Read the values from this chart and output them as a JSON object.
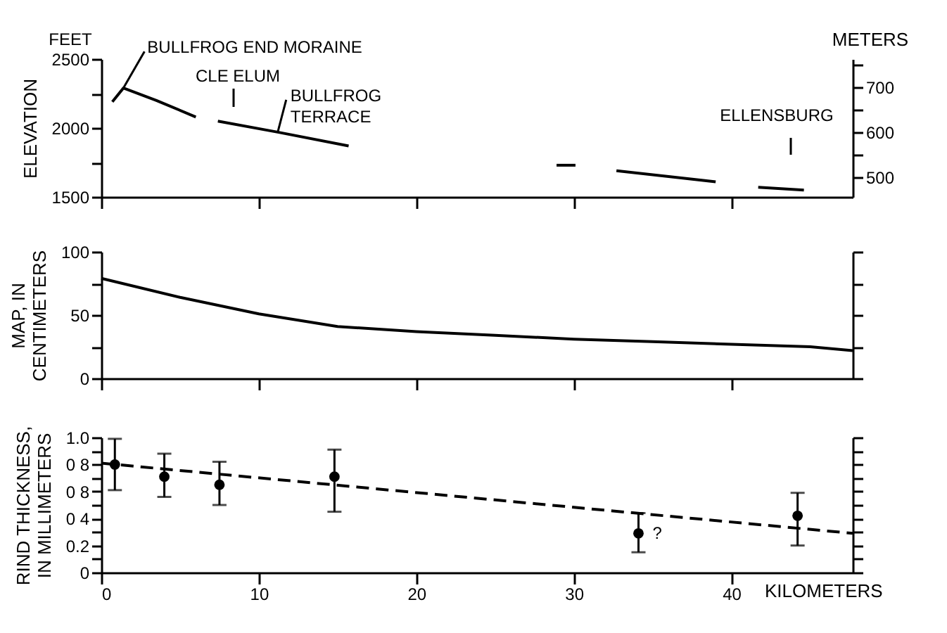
{
  "chart_data": [
    {
      "type": "line",
      "ylabel": "ELEVATION",
      "y2label": "METERS",
      "xlim": [
        0,
        47.7
      ],
      "xticks": [
        0,
        10,
        20,
        30,
        40
      ],
      "ylim": [
        1500,
        2500
      ],
      "yticks": [
        1500,
        {
          "value": 1750,
          "label": null
        },
        2000,
        {
          "value": 2250,
          "label": null
        },
        2500
      ],
      "y2lim": [
        457.2,
        762
      ],
      "y2ticks": [
        500,
        {
          "value": 550,
          "label": null
        },
        600,
        {
          "value": 650,
          "label": null
        },
        700,
        {
          "value": 750,
          "label": null
        }
      ],
      "tick_labels": "y",
      "grid": false,
      "series": [
        {
          "color": "#000000",
          "x": [
            0.7,
            1.4,
            3.5,
            6.0
          ],
          "values": [
            2190,
            2290,
            2200,
            2080
          ]
        },
        {
          "color": "#000000",
          "x": [
            7.4,
            11.2,
            15.7
          ],
          "values": [
            2050,
            1970,
            1870
          ]
        },
        {
          "color": "#000000",
          "x": [
            28.9,
            30.1
          ],
          "values": [
            1730,
            1730
          ]
        },
        {
          "color": "#000000",
          "x": [
            32.7,
            39.0
          ],
          "values": [
            1690,
            1610
          ]
        },
        {
          "color": "#000000",
          "x": [
            41.7,
            44.6
          ],
          "values": [
            1570,
            1550
          ]
        }
      ],
      "annotations": [
        "FEET",
        {
          "text": "BULLFROG END MORAINE",
          "x": 1.4,
          "y": 2290
        },
        "CLE ELUM",
        {
          "text": "BULLFROG\nTERRACE",
          "x": 11.2,
          "y": 1970
        },
        "ELLENSBURG"
      ]
    },
    {
      "type": "line",
      "ylabel": "MAP, IN\nCENTIMETERS",
      "xlim": [
        0,
        47.7
      ],
      "xticks": [
        0,
        10,
        20,
        30,
        40
      ],
      "ylim": [
        0,
        100
      ],
      "yticks": [
        0,
        {
          "value": 25,
          "label": null
        },
        50,
        {
          "value": 75,
          "label": null
        },
        100
      ],
      "tick_labels": "y",
      "grid": false,
      "series": [
        {
          "color": "#000000",
          "x": [
            0,
            5,
            10,
            15,
            20,
            25,
            30,
            35,
            40,
            45,
            47.7
          ],
          "values": [
            79,
            64,
            51,
            41,
            37,
            34,
            31,
            29,
            27,
            25,
            22
          ]
        }
      ]
    },
    {
      "type": "scatter",
      "ylabel": "RIND THICKNESS,\nIN MILLIMETERS",
      "xlabel": "KILOMETERS",
      "xlim": [
        0,
        47.7
      ],
      "xticks": [
        0,
        10,
        20,
        30,
        40
      ],
      "ylim": [
        0,
        1.0
      ],
      "yticks": [
        0,
        {
          "value": 0.1,
          "label": null
        },
        0.2,
        {
          "value": 0.3,
          "label": null
        },
        {
          "value": 0.4,
          "label": "0 4"
        },
        {
          "value": 0.5,
          "label": null
        },
        {
          "value": 0.6,
          "label": "0 8"
        },
        {
          "value": 0.7,
          "label": null
        },
        {
          "value": 0.8,
          "label": "0 8"
        },
        {
          "value": 0.9,
          "label": null
        },
        {
          "value": 1.0,
          "label": "1.0"
        }
      ],
      "grid": false,
      "series": [
        {
          "marker": "circle",
          "color": "#000000",
          "x": [
            0.86,
            4.0,
            7.5,
            14.8,
            34.1,
            44.2
          ],
          "values": [
            0.8,
            0.71,
            0.65,
            0.71,
            0.29,
            0.42
          ],
          "errors": [
            [
              0.61,
              0.99
            ],
            [
              0.56,
              0.88
            ],
            [
              0.5,
              0.82
            ],
            [
              0.45,
              0.91
            ],
            [
              0.15,
              0.44
            ],
            [
              0.2,
              0.59
            ]
          ]
        },
        {
          "type": "line",
          "line_style": "dashed",
          "color": "#000000",
          "x": [
            0,
            47.7
          ],
          "values": [
            0.81,
            0.29
          ]
        }
      ],
      "annotations": [
        {
          "text": "?",
          "x": 34.1,
          "y": 0.29
        }
      ]
    }
  ]
}
